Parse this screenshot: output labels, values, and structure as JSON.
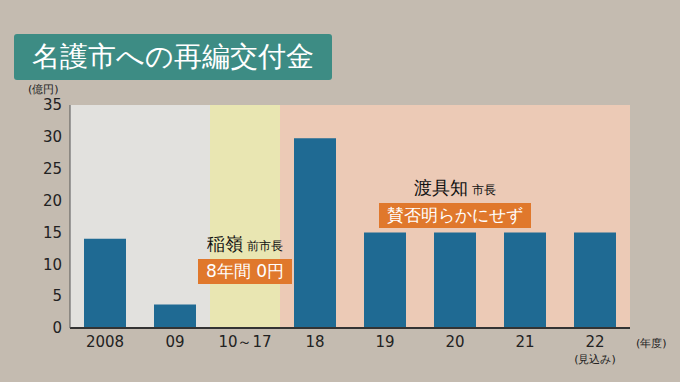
{
  "chart_data": {
    "type": "bar",
    "title": "名護市への再編交付金",
    "y_label": "(億円)",
    "x_label": "(年度)",
    "categories": [
      "2008",
      "09",
      "10～17",
      "18",
      "19",
      "20",
      "21",
      "22"
    ],
    "values": [
      14,
      3.7,
      0,
      29.8,
      15,
      15,
      15,
      15
    ],
    "color": "#1f6a93",
    "ylim": [
      0,
      35
    ],
    "yticks": [
      0,
      5,
      10,
      15,
      20,
      25,
      30,
      35
    ],
    "grid": false,
    "annotations": [
      {
        "category": "10～17",
        "name": "稲嶺",
        "role": "前市長",
        "label": "8年間 0円"
      },
      {
        "category": "20",
        "name": "渡具知",
        "role": "市長",
        "label": "賛否明らかにせず"
      },
      {
        "category": "22",
        "text": "(見込み)"
      }
    ]
  }
}
